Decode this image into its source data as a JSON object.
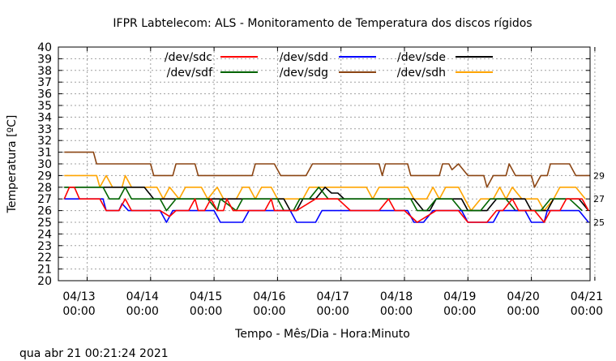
{
  "chart_data": {
    "type": "line",
    "title": "IFPR Labtelecom: ALS - Monitoramento de Temperatura dos discos rígidos",
    "xlabel": "Tempo - Mês/Dia - Hora:Minuto",
    "ylabel": "Temperatura [ºC]",
    "ylim": [
      20,
      40
    ],
    "xlim": [
      0,
      8.15
    ],
    "grid": true,
    "legend_position": "top",
    "x_ticks": [
      {
        "x": 0,
        "date": "04/13",
        "time": "00:00"
      },
      {
        "x": 1,
        "date": "04/14",
        "time": "00:00"
      },
      {
        "x": 2,
        "date": "04/15",
        "time": "00:00"
      },
      {
        "x": 3,
        "date": "04/16",
        "time": "00:00"
      },
      {
        "x": 4,
        "date": "04/17",
        "time": "00:00"
      },
      {
        "x": 5,
        "date": "04/18",
        "time": "00:00"
      },
      {
        "x": 6,
        "date": "04/19",
        "time": "00:00"
      },
      {
        "x": 7,
        "date": "04/20",
        "time": "00:00"
      },
      {
        "x": 8,
        "date": "04/21",
        "time": "00:00"
      }
    ],
    "y_ticks": [
      20,
      21,
      22,
      23,
      24,
      25,
      26,
      27,
      28,
      29,
      30,
      31,
      32,
      33,
      34,
      35,
      36,
      37,
      38,
      39,
      40
    ],
    "right_labels": [
      "29",
      "27",
      "25"
    ],
    "series": [
      {
        "name": "/dev/sdc",
        "color": "#ff0000",
        "values": [
          [
            -0.36,
            27
          ],
          [
            -0.28,
            28
          ],
          [
            -0.2,
            28
          ],
          [
            -0.12,
            27
          ],
          [
            0.2,
            27
          ],
          [
            0.3,
            26
          ],
          [
            0.5,
            26
          ],
          [
            0.6,
            27
          ],
          [
            0.7,
            26
          ],
          [
            1.05,
            26
          ],
          [
            1.15,
            26
          ],
          [
            1.3,
            25.5
          ],
          [
            1.4,
            26
          ],
          [
            1.6,
            26
          ],
          [
            1.7,
            27
          ],
          [
            1.75,
            26
          ],
          [
            1.85,
            26
          ],
          [
            1.95,
            27
          ],
          [
            2.05,
            26
          ],
          [
            2.15,
            26
          ],
          [
            2.2,
            27
          ],
          [
            2.3,
            26
          ],
          [
            2.5,
            26
          ],
          [
            2.6,
            26
          ],
          [
            2.8,
            26
          ],
          [
            2.9,
            27
          ],
          [
            2.95,
            26
          ],
          [
            3.05,
            26
          ],
          [
            3.15,
            26
          ],
          [
            3.3,
            26
          ],
          [
            3.45,
            26.5
          ],
          [
            3.6,
            27
          ],
          [
            3.8,
            27
          ],
          [
            3.95,
            27
          ],
          [
            4.15,
            26
          ],
          [
            4.3,
            26
          ],
          [
            4.45,
            26
          ],
          [
            4.6,
            26
          ],
          [
            4.75,
            27
          ],
          [
            4.85,
            26
          ],
          [
            5.0,
            26
          ],
          [
            5.2,
            25
          ],
          [
            5.35,
            25.5
          ],
          [
            5.5,
            26
          ],
          [
            5.7,
            26
          ],
          [
            5.85,
            26
          ],
          [
            6.0,
            25
          ],
          [
            6.15,
            25
          ],
          [
            6.3,
            25
          ],
          [
            6.45,
            26
          ],
          [
            6.55,
            26
          ],
          [
            6.7,
            27
          ],
          [
            6.8,
            26
          ],
          [
            6.9,
            26
          ],
          [
            7.05,
            26
          ],
          [
            7.2,
            25
          ],
          [
            7.3,
            26
          ],
          [
            7.45,
            26
          ],
          [
            7.55,
            27
          ],
          [
            7.7,
            27
          ],
          [
            7.8,
            27
          ],
          [
            7.9,
            26
          ]
        ]
      },
      {
        "name": "/dev/sdd",
        "color": "#0000ff",
        "values": [
          [
            -0.36,
            27
          ],
          [
            0.25,
            27
          ],
          [
            0.3,
            26
          ],
          [
            0.5,
            26
          ],
          [
            0.55,
            26.6
          ],
          [
            0.65,
            26
          ],
          [
            1.1,
            26
          ],
          [
            1.15,
            26
          ],
          [
            1.25,
            25
          ],
          [
            1.35,
            26
          ],
          [
            1.85,
            26
          ],
          [
            2.0,
            26
          ],
          [
            2.1,
            25
          ],
          [
            2.35,
            25
          ],
          [
            2.45,
            25
          ],
          [
            2.55,
            26
          ],
          [
            3.2,
            26
          ],
          [
            3.3,
            25
          ],
          [
            3.6,
            25
          ],
          [
            3.7,
            26
          ],
          [
            4.5,
            26
          ],
          [
            5.05,
            26
          ],
          [
            5.15,
            25
          ],
          [
            5.3,
            25
          ],
          [
            5.45,
            26
          ],
          [
            5.9,
            26
          ],
          [
            6.0,
            25
          ],
          [
            6.4,
            25
          ],
          [
            6.5,
            26
          ],
          [
            6.9,
            26
          ],
          [
            7.0,
            25
          ],
          [
            7.2,
            25
          ],
          [
            7.25,
            26
          ],
          [
            7.45,
            26
          ],
          [
            7.55,
            26
          ],
          [
            7.75,
            26
          ],
          [
            7.9,
            25
          ]
        ]
      },
      {
        "name": "/dev/sde",
        "color": "#000000",
        "values": [
          [
            -0.36,
            28
          ],
          [
            0.3,
            28
          ],
          [
            0.5,
            28
          ],
          [
            0.7,
            28
          ],
          [
            0.9,
            28
          ],
          [
            1.05,
            27
          ],
          [
            1.3,
            27
          ],
          [
            1.6,
            27
          ],
          [
            2.0,
            27
          ],
          [
            2.3,
            27
          ],
          [
            2.9,
            27
          ],
          [
            3.1,
            27
          ],
          [
            3.2,
            26
          ],
          [
            3.3,
            26
          ],
          [
            3.4,
            27
          ],
          [
            3.6,
            27
          ],
          [
            3.75,
            28
          ],
          [
            3.85,
            27.5
          ],
          [
            3.95,
            27.5
          ],
          [
            4.05,
            27
          ],
          [
            4.3,
            27
          ],
          [
            4.6,
            27
          ],
          [
            5.15,
            27
          ],
          [
            5.3,
            26
          ],
          [
            5.4,
            26
          ],
          [
            5.5,
            27
          ],
          [
            5.9,
            27
          ],
          [
            6.0,
            26
          ],
          [
            6.3,
            26
          ],
          [
            6.45,
            27
          ],
          [
            6.6,
            27
          ],
          [
            6.9,
            27
          ],
          [
            7.0,
            26
          ],
          [
            7.15,
            26
          ],
          [
            7.25,
            26
          ],
          [
            7.35,
            27
          ],
          [
            7.6,
            27
          ],
          [
            7.75,
            27
          ],
          [
            7.9,
            26
          ]
        ]
      },
      {
        "name": "/dev/sdf",
        "color": "#006400",
        "values": [
          [
            -0.36,
            28
          ],
          [
            0.25,
            28
          ],
          [
            0.35,
            27
          ],
          [
            0.5,
            27
          ],
          [
            0.6,
            28
          ],
          [
            0.7,
            27
          ],
          [
            0.9,
            27
          ],
          [
            1.0,
            27
          ],
          [
            1.15,
            27
          ],
          [
            1.25,
            26
          ],
          [
            1.4,
            27
          ],
          [
            1.6,
            27
          ],
          [
            1.9,
            27
          ],
          [
            2.05,
            26
          ],
          [
            2.1,
            27
          ],
          [
            2.35,
            26
          ],
          [
            2.45,
            27
          ],
          [
            2.6,
            27
          ],
          [
            3.0,
            27
          ],
          [
            3.1,
            26
          ],
          [
            3.25,
            26
          ],
          [
            3.35,
            27
          ],
          [
            3.5,
            27
          ],
          [
            3.65,
            28
          ],
          [
            3.8,
            27
          ],
          [
            4.1,
            27
          ],
          [
            4.6,
            27
          ],
          [
            4.75,
            27
          ],
          [
            5.1,
            27
          ],
          [
            5.2,
            26
          ],
          [
            5.35,
            26
          ],
          [
            5.5,
            27
          ],
          [
            5.75,
            27
          ],
          [
            5.9,
            26
          ],
          [
            6.05,
            26
          ],
          [
            6.2,
            26
          ],
          [
            6.35,
            27
          ],
          [
            6.6,
            27
          ],
          [
            6.75,
            26
          ],
          [
            6.9,
            26
          ],
          [
            7.05,
            26
          ],
          [
            7.15,
            26
          ],
          [
            7.3,
            27
          ],
          [
            7.6,
            27
          ],
          [
            7.8,
            26
          ]
        ]
      },
      {
        "name": "/dev/sdg",
        "color": "#8b4513",
        "values": [
          [
            -0.36,
            31
          ],
          [
            0.1,
            31
          ],
          [
            0.15,
            30
          ],
          [
            0.5,
            30
          ],
          [
            0.55,
            30
          ],
          [
            0.7,
            30
          ],
          [
            0.75,
            30
          ],
          [
            1.0,
            30
          ],
          [
            1.05,
            29
          ],
          [
            1.35,
            29
          ],
          [
            1.4,
            30
          ],
          [
            1.7,
            30
          ],
          [
            1.75,
            29
          ],
          [
            2.15,
            29
          ],
          [
            2.6,
            29
          ],
          [
            2.65,
            30
          ],
          [
            2.95,
            30
          ],
          [
            3.05,
            29
          ],
          [
            3.45,
            29
          ],
          [
            3.55,
            30
          ],
          [
            3.95,
            30
          ],
          [
            4.2,
            30
          ],
          [
            4.6,
            30
          ],
          [
            4.65,
            29
          ],
          [
            4.7,
            30
          ],
          [
            5.05,
            30
          ],
          [
            5.1,
            29
          ],
          [
            5.55,
            29
          ],
          [
            5.6,
            30
          ],
          [
            5.7,
            30
          ],
          [
            5.75,
            29.5
          ],
          [
            5.85,
            30
          ],
          [
            6.0,
            29
          ],
          [
            6.25,
            29
          ],
          [
            6.3,
            28
          ],
          [
            6.4,
            29
          ],
          [
            6.6,
            29
          ],
          [
            6.65,
            30
          ],
          [
            6.75,
            29
          ],
          [
            6.85,
            29
          ],
          [
            7.0,
            29
          ],
          [
            7.05,
            28
          ],
          [
            7.15,
            29
          ],
          [
            7.25,
            29
          ],
          [
            7.3,
            30
          ],
          [
            7.6,
            30
          ],
          [
            7.7,
            29
          ],
          [
            7.95,
            29
          ]
        ]
      },
      {
        "name": "/dev/sdh",
        "color": "#ffa500",
        "values": [
          [
            -0.36,
            29
          ],
          [
            0.15,
            29
          ],
          [
            0.2,
            28
          ],
          [
            0.3,
            29
          ],
          [
            0.4,
            28
          ],
          [
            0.55,
            28
          ],
          [
            0.6,
            29
          ],
          [
            0.7,
            28
          ],
          [
            1.1,
            28
          ],
          [
            1.2,
            27
          ],
          [
            1.3,
            28
          ],
          [
            1.45,
            27
          ],
          [
            1.55,
            28
          ],
          [
            1.8,
            28
          ],
          [
            1.9,
            27
          ],
          [
            2.05,
            28
          ],
          [
            2.15,
            27
          ],
          [
            2.35,
            27
          ],
          [
            2.45,
            28
          ],
          [
            2.55,
            28
          ],
          [
            2.65,
            27
          ],
          [
            2.75,
            28
          ],
          [
            2.9,
            28
          ],
          [
            3.0,
            27
          ],
          [
            3.4,
            27
          ],
          [
            3.5,
            28
          ],
          [
            3.8,
            28
          ],
          [
            4.4,
            28
          ],
          [
            4.5,
            27
          ],
          [
            4.6,
            28
          ],
          [
            4.85,
            28
          ],
          [
            5.05,
            28
          ],
          [
            5.15,
            27
          ],
          [
            5.35,
            27
          ],
          [
            5.45,
            28
          ],
          [
            5.55,
            27
          ],
          [
            5.65,
            28
          ],
          [
            5.85,
            28
          ],
          [
            5.95,
            27
          ],
          [
            6.05,
            26
          ],
          [
            6.2,
            27
          ],
          [
            6.4,
            27
          ],
          [
            6.5,
            28
          ],
          [
            6.6,
            27
          ],
          [
            6.7,
            28
          ],
          [
            6.85,
            27
          ],
          [
            7.0,
            27
          ],
          [
            7.1,
            27
          ],
          [
            7.2,
            26
          ],
          [
            7.35,
            27
          ],
          [
            7.45,
            28
          ],
          [
            7.7,
            28
          ],
          [
            7.85,
            27
          ]
        ]
      }
    ]
  },
  "footer": {
    "timestamp": "qua abr 21 00:21:24 2021"
  }
}
